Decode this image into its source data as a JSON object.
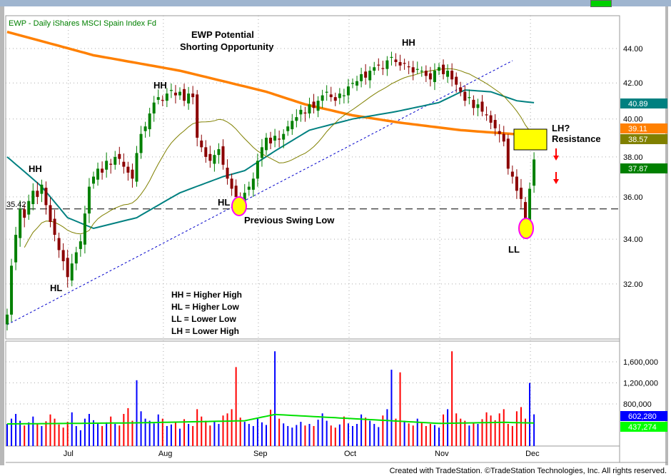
{
  "title": "EWP - Daily  iShares MSCI Spain Index Fd",
  "footer": "Created with TradeStation. ©TradeStation Technologies, Inc. All rights reserved.",
  "annotations": {
    "headline1": "EWP Potential",
    "headline2": "Shorting Opportunity",
    "hh1": "HH",
    "hh2": "HH",
    "hh3": "HH",
    "hl1": "HL",
    "hl2": "HL",
    "ll": "LL",
    "lh": "LH?",
    "resistance": "Resistance",
    "swing_low": "Previous Swing Low",
    "swing_low_value": "35.42",
    "legend": [
      "HH = Higher High",
      "HL = Higher Low",
      "LL = Lower Low",
      "LH = Lower High"
    ]
  },
  "colors": {
    "up": "#008000",
    "down": "#8b0000",
    "ma200": "#ff8000",
    "ma50": "#008080",
    "ma20": "#808000",
    "vol_up": "#0000ff",
    "vol_down": "#ff0000",
    "vol_ma": "#00e000",
    "trend": "#0000cc"
  },
  "chart_data": {
    "type": "candlestick",
    "symbol": "EWP",
    "interval": "Daily",
    "x_labels": [
      "Jul",
      "Aug",
      "Sep",
      "Oct",
      "Nov",
      "Dec"
    ],
    "x_label_index": [
      15,
      37,
      59,
      80,
      101,
      122
    ],
    "price_ticks": [
      "44.00",
      "42.00",
      "40.00",
      "38.00",
      "36.00",
      "34.00",
      "32.00"
    ],
    "price_scale": "log",
    "ylim": [
      29.5,
      45.5
    ],
    "closes": [
      30.7,
      32.8,
      34.2,
      35.4,
      35.0,
      35.8,
      36.3,
      36.0,
      36.6,
      35.6,
      34.8,
      34.2,
      33.5,
      33.0,
      32.3,
      32.9,
      33.4,
      33.9,
      35.2,
      36.5,
      37.0,
      37.4,
      37.2,
      37.8,
      37.6,
      38.0,
      37.9,
      37.5,
      37.2,
      36.9,
      38.2,
      39.2,
      39.6,
      40.3,
      40.9,
      41.2,
      41.0,
      41.4,
      41.6,
      41.3,
      41.5,
      41.0,
      41.4,
      41.2,
      39.0,
      38.5,
      38.0,
      37.8,
      38.1,
      38.4,
      37.6,
      36.9,
      36.4,
      36.0,
      35.6,
      36.2,
      36.5,
      36.9,
      37.8,
      38.5,
      39.0,
      38.7,
      39.1,
      38.9,
      39.2,
      39.6,
      39.9,
      40.1,
      40.5,
      40.3,
      40.8,
      40.6,
      41.0,
      41.3,
      41.5,
      41.2,
      41.0,
      41.4,
      41.3,
      41.8,
      42.0,
      42.1,
      42.5,
      42.3,
      42.7,
      42.9,
      43.0,
      42.8,
      43.3,
      43.5,
      43.2,
      43.0,
      43.1,
      42.9,
      42.6,
      42.8,
      42.7,
      42.4,
      42.2,
      42.7,
      42.9,
      42.5,
      42.7,
      42.2,
      41.9,
      41.5,
      41.0,
      41.2,
      40.6,
      40.8,
      40.4,
      40.2,
      39.8,
      39.5,
      39.2,
      38.8,
      37.4,
      37.0,
      36.3,
      35.9,
      34.6,
      36.4,
      37.87
    ],
    "volume_thousands": [
      420,
      520,
      610,
      480,
      390,
      450,
      560,
      430,
      380,
      470,
      600,
      520,
      410,
      350,
      460,
      640,
      380,
      300,
      520,
      610,
      490,
      420,
      380,
      450,
      560,
      420,
      390,
      610,
      720,
      480,
      1250,
      660,
      520,
      480,
      430,
      600,
      520,
      380,
      410,
      450,
      330,
      510,
      420,
      380,
      700,
      560,
      480,
      390,
      460,
      420,
      580,
      620,
      700,
      1500,
      540,
      460,
      420,
      380,
      520,
      450,
      400,
      690,
      1800,
      520,
      430,
      380,
      350,
      400,
      460,
      390,
      420,
      380,
      500,
      620,
      480,
      390,
      350,
      410,
      560,
      430,
      380,
      420,
      600,
      540,
      480,
      420,
      360,
      580,
      700,
      1450,
      520,
      1400,
      480,
      430,
      390,
      520,
      460,
      380,
      420,
      400,
      350,
      600,
      700,
      1800,
      620,
      520,
      480,
      390,
      450,
      420,
      510,
      640,
      580,
      490,
      620,
      700,
      420,
      380,
      660,
      740,
      520,
      1200,
      602
    ],
    "volume_ma_thousands": [
      {
        "i": 0,
        "v": 420
      },
      {
        "i": 30,
        "v": 440
      },
      {
        "i": 55,
        "v": 480
      },
      {
        "i": 62,
        "v": 600
      },
      {
        "i": 80,
        "v": 520
      },
      {
        "i": 100,
        "v": 430
      },
      {
        "i": 115,
        "v": 450
      },
      {
        "i": 122,
        "v": 437
      }
    ],
    "ma200": [
      {
        "i": 0,
        "v": 45.0
      },
      {
        "i": 20,
        "v": 43.6
      },
      {
        "i": 40,
        "v": 42.7
      },
      {
        "i": 60,
        "v": 41.5
      },
      {
        "i": 69,
        "v": 40.8
      },
      {
        "i": 80,
        "v": 40.2
      },
      {
        "i": 91,
        "v": 39.8
      },
      {
        "i": 105,
        "v": 39.4
      },
      {
        "i": 122,
        "v": 39.11
      }
    ],
    "ma50": [
      {
        "i": 0,
        "v": 38.0
      },
      {
        "i": 8,
        "v": 36.5
      },
      {
        "i": 14,
        "v": 35.0
      },
      {
        "i": 20,
        "v": 34.5
      },
      {
        "i": 30,
        "v": 35.0
      },
      {
        "i": 40,
        "v": 36.2
      },
      {
        "i": 50,
        "v": 37.0
      },
      {
        "i": 55,
        "v": 37.3
      },
      {
        "i": 62,
        "v": 38.3
      },
      {
        "i": 70,
        "v": 39.4
      },
      {
        "i": 80,
        "v": 40.0
      },
      {
        "i": 90,
        "v": 40.4
      },
      {
        "i": 100,
        "v": 40.9
      },
      {
        "i": 106,
        "v": 41.6
      },
      {
        "i": 112,
        "v": 41.5
      },
      {
        "i": 118,
        "v": 41.0
      },
      {
        "i": 122,
        "v": 40.89
      }
    ],
    "ma20_period": 20,
    "last_values": {
      "ma50": "40.89",
      "ma200": "39.11",
      "ma20": "38.57",
      "close": "37.87"
    },
    "volume_ticks": [
      "1,600,000",
      "1,200,000",
      "800,000"
    ],
    "volume_last": {
      "volume": "602,280",
      "volume_ma": "437,274"
    },
    "swing_low_level": 35.42
  }
}
